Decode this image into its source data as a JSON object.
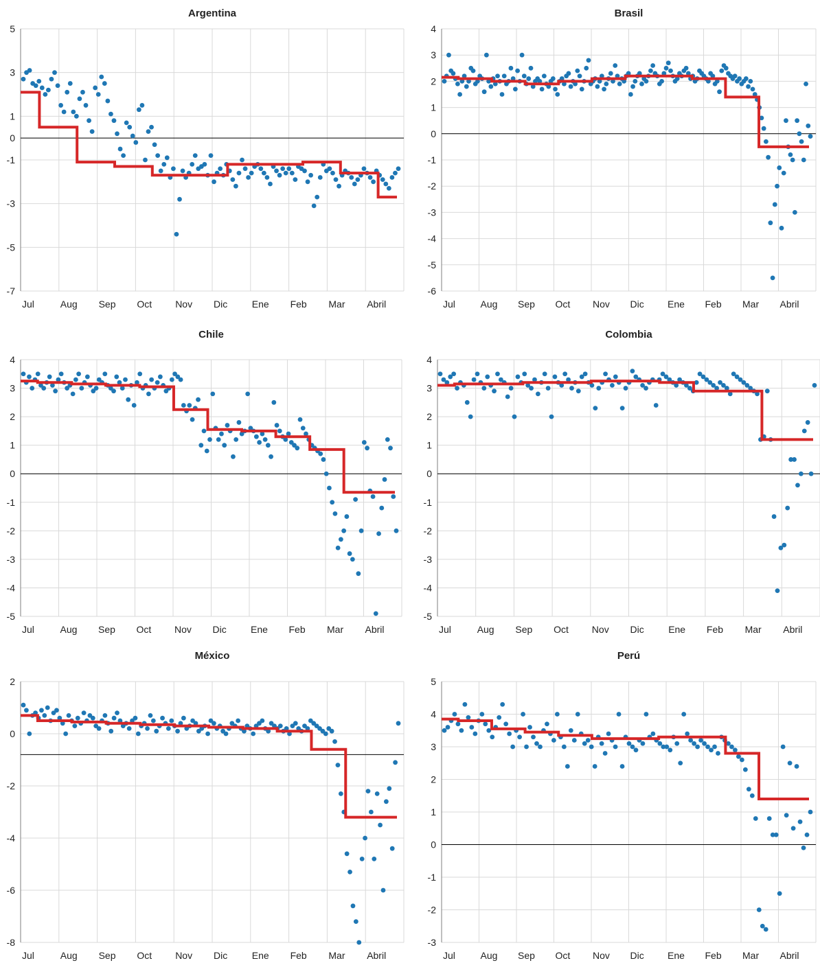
{
  "colors": {
    "points": "#1f77b4",
    "step_line": "#d62728",
    "grid": "#d9d9d9",
    "zero_line": "#000000"
  },
  "chart_data": [
    {
      "type": "scatter",
      "title": "Argentina",
      "x_labels": [
        "Jul",
        "Aug",
        "Sep",
        "Oct",
        "Nov",
        "Dic",
        "Ene",
        "Feb",
        "Mar",
        "Abril"
      ],
      "ylim": [
        -7,
        5
      ],
      "yticks": [
        5,
        3,
        1,
        0,
        -1,
        -3,
        -5,
        -7
      ],
      "zero_line": 0,
      "grid": true,
      "series": [
        {
          "kind": "scatter",
          "values": [
            2.7,
            3.0,
            3.1,
            2.5,
            2.4,
            2.6,
            2.3,
            2.0,
            2.2,
            2.7,
            3.0,
            2.4,
            1.5,
            1.2,
            2.1,
            2.5,
            1.2,
            1.0,
            1.8,
            2.1,
            1.5,
            0.8,
            0.3,
            2.3,
            2.0,
            2.8,
            2.5,
            1.7,
            1.1,
            0.8,
            0.2,
            -0.5,
            -0.8,
            0.7,
            0.5,
            0.1,
            -0.2,
            1.3,
            1.5,
            -1.0,
            0.3,
            0.5,
            -0.3,
            -0.8,
            -1.5,
            -1.2,
            -0.9,
            -1.8,
            -1.4,
            -4.4,
            -2.8,
            -1.5,
            -1.8,
            -1.6,
            -1.2,
            -0.8,
            -1.4,
            -1.3,
            -1.2,
            -1.7,
            -0.8,
            -2.0,
            -1.6,
            -1.4,
            -1.7,
            -1.2,
            -1.5,
            -1.9,
            -2.2,
            -1.6,
            -1.0,
            -1.4,
            -1.8,
            -1.6,
            -1.3,
            -1.2,
            -1.4,
            -1.6,
            -1.8,
            -2.1,
            -1.3,
            -1.5,
            -1.7,
            -1.4,
            -1.6,
            -1.4,
            -1.6,
            -1.9,
            -1.3,
            -1.4,
            -1.5,
            -2.0,
            -1.7,
            -3.1,
            -2.7,
            -1.8,
            -1.2,
            -1.5,
            -1.4,
            -1.6,
            -1.9,
            -2.2,
            -1.7,
            -1.5,
            -1.6,
            -1.8,
            -2.1,
            -1.9,
            -1.7,
            -1.4,
            -1.6,
            -1.8,
            -2.0,
            -1.5,
            -1.7,
            -1.9,
            -2.1,
            -2.3,
            -1.8,
            -1.6,
            -1.4
          ],
          "note": ""
        },
        {
          "kind": "step",
          "values": [
            2.1,
            0.5,
            -1.1,
            -1.3,
            -1.7,
            -1.7,
            -1.2,
            -1.2,
            -1.1,
            -1.6,
            -2.7
          ]
        }
      ]
    },
    {
      "type": "scatter",
      "title": "Brasil",
      "x_labels": [
        "Jul",
        "Aug",
        "Sep",
        "Oct",
        "Nov",
        "Dic",
        "Ene",
        "Feb",
        "Mar",
        "Abril"
      ],
      "ylim": [
        -6,
        4
      ],
      "yticks": [
        4,
        3,
        2,
        1,
        0,
        -1,
        -2,
        -3,
        -4,
        -5,
        -6
      ],
      "zero_line": 0,
      "grid": true,
      "series": [
        {
          "kind": "scatter",
          "values": [
            2.0,
            2.2,
            3.0,
            2.4,
            2.3,
            2.1,
            1.9,
            1.5,
            2.0,
            2.2,
            1.8,
            2.0,
            2.5,
            2.4,
            1.9,
            2.0,
            2.2,
            2.1,
            1.6,
            3.0,
            2.0,
            1.8,
            2.1,
            1.9,
            2.2,
            2.0,
            1.5,
            2.2,
            1.9,
            2.0,
            2.5,
            2.1,
            1.7,
            2.4,
            2.0,
            3.0,
            2.2,
            1.9,
            2.1,
            2.5,
            1.8,
            2.0,
            2.1,
            2.0,
            1.7,
            2.2,
            1.9,
            1.8,
            2.0,
            2.1,
            1.7,
            1.5,
            2.0,
            2.1,
            1.9,
            2.2,
            2.3,
            1.8,
            2.0,
            1.9,
            2.4,
            2.2,
            1.7,
            2.0,
            2.5,
            2.8,
            1.9,
            2.0,
            2.1,
            1.8,
            2.0,
            2.2,
            1.7,
            1.9,
            2.1,
            2.3,
            2.0,
            2.6,
            2.2,
            1.9,
            2.1,
            2.0,
            2.2,
            2.3,
            1.5,
            1.8,
            2.0,
            2.2,
            2.3,
            1.9,
            2.1,
            2.0,
            2.2,
            2.4,
            2.6,
            2.3,
            2.2,
            1.9,
            2.0,
            2.3,
            2.5,
            2.7,
            2.4,
            2.2,
            2.0,
            2.1,
            2.3,
            2.2,
            2.4,
            2.5,
            2.3,
            2.1,
            2.2,
            2.0,
            2.1,
            2.4,
            2.3,
            2.2,
            2.1,
            2.0,
            2.3,
            2.2,
            1.9,
            2.0,
            1.6,
            2.4,
            2.6,
            2.5,
            2.3,
            2.2,
            2.1,
            2.2,
            2.0,
            2.1,
            1.9,
            2.0,
            2.1,
            1.8,
            2.0,
            1.7,
            1.5,
            1.3,
            1.0,
            0.6,
            0.2,
            -0.3,
            -0.9,
            -3.4,
            -5.5,
            -2.7,
            -2.0,
            -1.3,
            -3.6,
            -1.5,
            0.5,
            -0.5,
            -0.8,
            -1.0,
            -3.0,
            0.5,
            0.0,
            -0.3,
            -1.0,
            1.9,
            0.3,
            -0.1
          ],
          "note": ""
        },
        {
          "kind": "step",
          "values": [
            2.15,
            2.1,
            2.0,
            1.9,
            2.0,
            2.1,
            2.2,
            2.2,
            2.1,
            1.4,
            -0.5,
            -0.5
          ]
        }
      ]
    },
    {
      "type": "scatter",
      "title": "Chile",
      "x_labels": [
        "Jul",
        "Aug",
        "Sep",
        "Oct",
        "Nov",
        "Dic",
        "Ene",
        "Feb",
        "Mar",
        "Abril"
      ],
      "ylim": [
        -5,
        4
      ],
      "yticks": [
        4,
        3,
        2,
        1,
        0,
        -1,
        -2,
        -3,
        -4,
        -5
      ],
      "zero_line": 0,
      "grid": true,
      "series": [
        {
          "kind": "scatter",
          "values": [
            3.5,
            3.2,
            3.4,
            3.0,
            3.3,
            3.5,
            3.1,
            3.0,
            3.2,
            3.4,
            3.1,
            2.9,
            3.3,
            3.5,
            3.2,
            3.0,
            3.1,
            2.8,
            3.3,
            3.5,
            3.0,
            3.2,
            3.4,
            3.1,
            2.9,
            3.0,
            3.3,
            3.2,
            3.5,
            3.1,
            3.0,
            2.9,
            3.4,
            3.2,
            3.0,
            3.3,
            2.6,
            3.1,
            2.4,
            3.2,
            3.5,
            3.0,
            3.1,
            2.8,
            3.3,
            3.0,
            3.2,
            3.4,
            3.1,
            2.9,
            3.0,
            3.3,
            3.5,
            3.4,
            3.3,
            2.4,
            2.2,
            2.4,
            1.9,
            2.3,
            2.6,
            1.0,
            1.5,
            0.8,
            1.2,
            2.8,
            1.6,
            1.2,
            1.4,
            1.0,
            1.7,
            1.5,
            0.6,
            1.2,
            1.8,
            1.4,
            1.5,
            2.8,
            1.6,
            1.5,
            1.3,
            1.1,
            1.4,
            1.2,
            1.0,
            0.6,
            2.5,
            1.7,
            1.5,
            1.3,
            1.2,
            1.4,
            1.1,
            1.0,
            0.9,
            1.9,
            1.6,
            1.4,
            1.2,
            1.0,
            0.9,
            0.8,
            0.7,
            0.5,
            0.0,
            -0.5,
            -1.0,
            -1.4,
            -2.6,
            -2.3,
            -2.0,
            -1.5,
            -2.8,
            -3.0,
            -0.9,
            -3.5,
            -2.0,
            1.1,
            0.9,
            -0.6,
            -0.8,
            -4.9,
            -2.1,
            -1.2,
            -0.2,
            1.2,
            0.9,
            -0.8,
            -2.0
          ],
          "note": ""
        },
        {
          "kind": "step",
          "values": [
            3.25,
            3.2,
            3.15,
            3.1,
            3.05,
            2.25,
            1.55,
            1.5,
            1.3,
            0.85,
            -0.65,
            -0.65
          ]
        }
      ]
    },
    {
      "type": "scatter",
      "title": "Colombia",
      "x_labels": [
        "Jul",
        "Aug",
        "Sep",
        "Oct",
        "Nov",
        "Dic",
        "Ene",
        "Feb",
        "Mar",
        "Abril"
      ],
      "ylim": [
        -5,
        4
      ],
      "yticks": [
        4,
        3,
        2,
        1,
        0,
        -1,
        -2,
        -3,
        -4,
        -5
      ],
      "zero_line": 0,
      "grid": true,
      "series": [
        {
          "kind": "scatter",
          "values": [
            3.5,
            3.3,
            3.2,
            3.4,
            3.5,
            3.0,
            3.2,
            3.1,
            2.5,
            2.0,
            3.3,
            3.5,
            3.2,
            3.0,
            3.4,
            3.1,
            2.9,
            3.5,
            3.3,
            3.2,
            2.7,
            3.0,
            2.0,
            3.4,
            3.2,
            3.5,
            3.1,
            3.0,
            3.3,
            2.8,
            3.2,
            3.5,
            3.0,
            2.0,
            3.4,
            3.2,
            3.1,
            3.5,
            3.3,
            3.0,
            3.2,
            2.9,
            3.4,
            3.5,
            3.2,
            3.1,
            2.3,
            3.0,
            3.2,
            3.5,
            3.3,
            3.1,
            3.4,
            3.2,
            2.3,
            3.0,
            3.2,
            3.6,
            3.4,
            3.3,
            3.1,
            3.0,
            3.2,
            3.3,
            2.4,
            3.3,
            3.5,
            3.4,
            3.3,
            3.2,
            3.1,
            3.3,
            3.2,
            3.1,
            3.0,
            2.9,
            3.2,
            3.5,
            3.4,
            3.3,
            3.2,
            3.1,
            3.0,
            3.2,
            3.1,
            3.0,
            2.8,
            3.5,
            3.4,
            3.3,
            3.2,
            3.1,
            3.0,
            2.9,
            2.8,
            1.2,
            1.3,
            2.9,
            1.2,
            -1.5,
            -4.1,
            -2.6,
            -2.5,
            -1.2,
            0.5,
            0.5,
            -0.4,
            0.0,
            1.5,
            1.8,
            0.0,
            3.1
          ],
          "note": ""
        },
        {
          "kind": "step",
          "values": [
            3.1,
            3.15,
            3.15,
            3.2,
            3.2,
            3.25,
            3.25,
            3.2,
            2.9,
            2.9,
            1.2,
            1.2
          ]
        }
      ]
    },
    {
      "type": "scatter",
      "title": "México",
      "x_labels": [
        "Jul",
        "Aug",
        "Sep",
        "Oct",
        "Nov",
        "Dic",
        "Ene",
        "Feb",
        "Mar",
        "Abril"
      ],
      "ylim": [
        -8,
        2
      ],
      "yticks": [
        2,
        0,
        -2,
        -4,
        -6,
        -8
      ],
      "zero_line": -0.8,
      "grid": true,
      "series": [
        {
          "kind": "scatter",
          "values": [
            1.1,
            0.9,
            0.0,
            0.7,
            0.8,
            0.6,
            0.9,
            0.7,
            1.0,
            0.5,
            0.8,
            0.9,
            0.6,
            0.4,
            0.0,
            0.7,
            0.5,
            0.3,
            0.6,
            0.4,
            0.8,
            0.5,
            0.7,
            0.6,
            0.3,
            0.2,
            0.5,
            0.7,
            0.4,
            0.1,
            0.6,
            0.8,
            0.5,
            0.3,
            0.4,
            0.2,
            0.5,
            0.6,
            0.0,
            0.3,
            0.4,
            0.2,
            0.7,
            0.5,
            0.1,
            0.3,
            0.6,
            0.4,
            0.2,
            0.5,
            0.3,
            0.1,
            0.4,
            0.6,
            0.2,
            0.3,
            0.5,
            0.4,
            0.1,
            0.2,
            0.3,
            0.0,
            0.5,
            0.4,
            0.2,
            0.3,
            0.1,
            0.0,
            0.2,
            0.4,
            0.3,
            0.5,
            0.2,
            0.1,
            0.3,
            0.2,
            0.0,
            0.3,
            0.4,
            0.5,
            0.2,
            0.1,
            0.4,
            0.3,
            0.2,
            0.3,
            0.1,
            0.2,
            0.0,
            0.3,
            0.4,
            0.2,
            0.1,
            0.3,
            0.2,
            0.5,
            0.4,
            0.3,
            0.2,
            0.1,
            0.0,
            0.2,
            0.1,
            -0.3,
            -1.2,
            -2.3,
            -3.0,
            -4.6,
            -5.3,
            -6.6,
            -7.2,
            -8.0,
            -4.8,
            -4.0,
            -2.2,
            -3.0,
            -4.8,
            -2.3,
            -3.5,
            -6.0,
            -2.6,
            -2.1,
            -4.4,
            -1.1,
            0.4
          ],
          "note": ""
        },
        {
          "kind": "step",
          "values": [
            0.7,
            0.5,
            0.45,
            0.4,
            0.35,
            0.3,
            0.25,
            0.2,
            0.1,
            -0.6,
            -3.2,
            -3.2
          ]
        }
      ]
    },
    {
      "type": "scatter",
      "title": "Perú",
      "x_labels": [
        "Jul",
        "Aug",
        "Sep",
        "Oct",
        "Nov",
        "Dic",
        "Ene",
        "Feb",
        "Mar",
        "Abril"
      ],
      "ylim": [
        -3,
        5
      ],
      "yticks": [
        5,
        4,
        3,
        2,
        1,
        0,
        -1,
        -2,
        -3
      ],
      "zero_line": 0,
      "grid": true,
      "series": [
        {
          "kind": "scatter",
          "values": [
            3.5,
            3.6,
            3.8,
            4.0,
            3.7,
            3.5,
            4.3,
            3.9,
            3.6,
            3.4,
            3.8,
            4.0,
            3.7,
            3.5,
            3.3,
            3.6,
            3.9,
            4.3,
            3.7,
            3.4,
            3.0,
            3.5,
            3.3,
            4.0,
            3.0,
            3.6,
            3.3,
            3.1,
            3.0,
            3.5,
            3.7,
            3.4,
            3.2,
            4.0,
            3.3,
            3.0,
            2.4,
            3.5,
            3.2,
            4.0,
            3.4,
            3.1,
            3.2,
            3.0,
            2.4,
            3.3,
            3.1,
            2.8,
            3.4,
            3.2,
            3.0,
            4.0,
            2.4,
            3.3,
            3.1,
            3.0,
            2.9,
            3.2,
            3.1,
            4.0,
            3.3,
            3.4,
            3.2,
            3.1,
            3.0,
            3.0,
            2.9,
            3.3,
            3.1,
            2.5,
            4.0,
            3.4,
            3.2,
            3.1,
            3.0,
            3.2,
            3.1,
            3.0,
            2.9,
            3.0,
            2.8,
            3.3,
            3.2,
            3.1,
            3.0,
            2.9,
            2.7,
            2.6,
            2.3,
            1.7,
            1.5,
            0.8,
            -2.0,
            -2.5,
            -2.6,
            0.8,
            0.3,
            0.3,
            -1.5,
            3.0,
            0.9,
            2.5,
            0.5,
            2.4,
            0.7,
            -0.1,
            0.3,
            1.0
          ],
          "note": ""
        },
        {
          "kind": "step",
          "values": [
            3.85,
            3.8,
            3.55,
            3.45,
            3.35,
            3.25,
            3.25,
            3.3,
            3.3,
            2.8,
            1.4,
            1.4
          ]
        }
      ]
    }
  ]
}
